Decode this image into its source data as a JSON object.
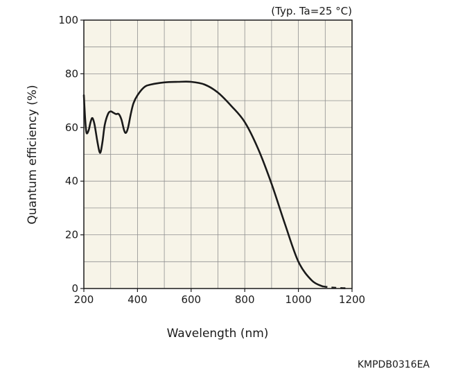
{
  "chart_data": {
    "type": "line",
    "title": "",
    "condition": "(Typ. Ta=25 °C)",
    "xlabel": "Wavelength (nm)",
    "ylabel": "Quantum efficiency (%)",
    "xlim": [
      200,
      1200
    ],
    "ylim": [
      0,
      100
    ],
    "x_ticks": [
      200,
      400,
      600,
      800,
      1000,
      1200
    ],
    "y_ticks": [
      0,
      20,
      40,
      60,
      80,
      100
    ],
    "x_tick_labels": [
      "200",
      "400",
      "600",
      "800",
      "1000",
      "1200"
    ],
    "y_tick_labels": [
      "0",
      "20",
      "40",
      "60",
      "80",
      "100"
    ],
    "grid": true,
    "plot_background": "#f7f4e8",
    "line_color": "#1a1a1a",
    "series": [
      {
        "style": "solid",
        "points": [
          [
            200,
            72
          ],
          [
            205,
            63
          ],
          [
            210,
            58
          ],
          [
            218,
            59
          ],
          [
            225,
            62
          ],
          [
            232,
            63.5
          ],
          [
            240,
            61
          ],
          [
            250,
            55
          ],
          [
            258,
            51
          ],
          [
            263,
            51
          ],
          [
            270,
            55
          ],
          [
            278,
            61
          ],
          [
            290,
            65
          ],
          [
            300,
            66
          ],
          [
            310,
            65.5
          ],
          [
            320,
            65
          ],
          [
            330,
            65
          ],
          [
            340,
            63
          ],
          [
            350,
            59
          ],
          [
            357,
            58
          ],
          [
            365,
            60
          ],
          [
            375,
            65
          ],
          [
            385,
            69
          ],
          [
            400,
            72
          ],
          [
            425,
            75
          ],
          [
            450,
            76
          ],
          [
            500,
            76.8
          ],
          [
            550,
            77
          ],
          [
            600,
            77
          ],
          [
            650,
            76
          ],
          [
            700,
            73
          ],
          [
            750,
            68
          ],
          [
            800,
            62
          ],
          [
            850,
            52
          ],
          [
            900,
            39
          ],
          [
            950,
            24
          ],
          [
            1000,
            10
          ],
          [
            1050,
            3
          ],
          [
            1090,
            0.8
          ]
        ]
      },
      {
        "style": "dashed",
        "points": [
          [
            1090,
            0.8
          ],
          [
            1120,
            0.4
          ],
          [
            1150,
            0.2
          ],
          [
            1190,
            0.05
          ]
        ]
      }
    ]
  },
  "figure_code": "KMPDB0316EA"
}
